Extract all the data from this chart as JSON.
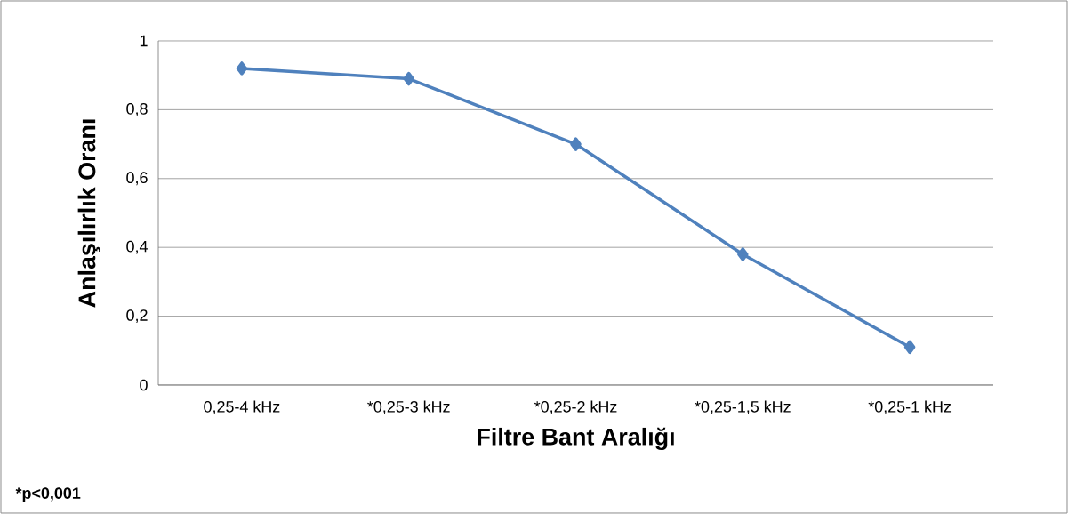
{
  "chart_data": {
    "type": "line",
    "xlabel": "Filtre Bant Aralığı",
    "ylabel": "Anlaşılırlık Oranı",
    "categories": [
      "0,25-4 kHz",
      "*0,25-3 kHz",
      "*0,25-2 kHz",
      "*0,25-1,5 kHz",
      "*0,25-1 kHz"
    ],
    "series": [
      {
        "color": "#4f81bd",
        "values": [
          0.92,
          0.89,
          0.7,
          0.38,
          0.11
        ]
      }
    ],
    "ylim": [
      0,
      1
    ],
    "yticks": [
      0,
      {
        "value": 0.2,
        "label": "0,2"
      },
      {
        "value": 0.4,
        "label": "0,4"
      },
      {
        "value": 0.6,
        "label": "0,6"
      },
      {
        "value": 0.8,
        "label": "0,8"
      },
      1
    ],
    "grid": "y",
    "marker": "diamond",
    "line_style": "solid",
    "annotations": [
      "*p<0,001"
    ]
  }
}
